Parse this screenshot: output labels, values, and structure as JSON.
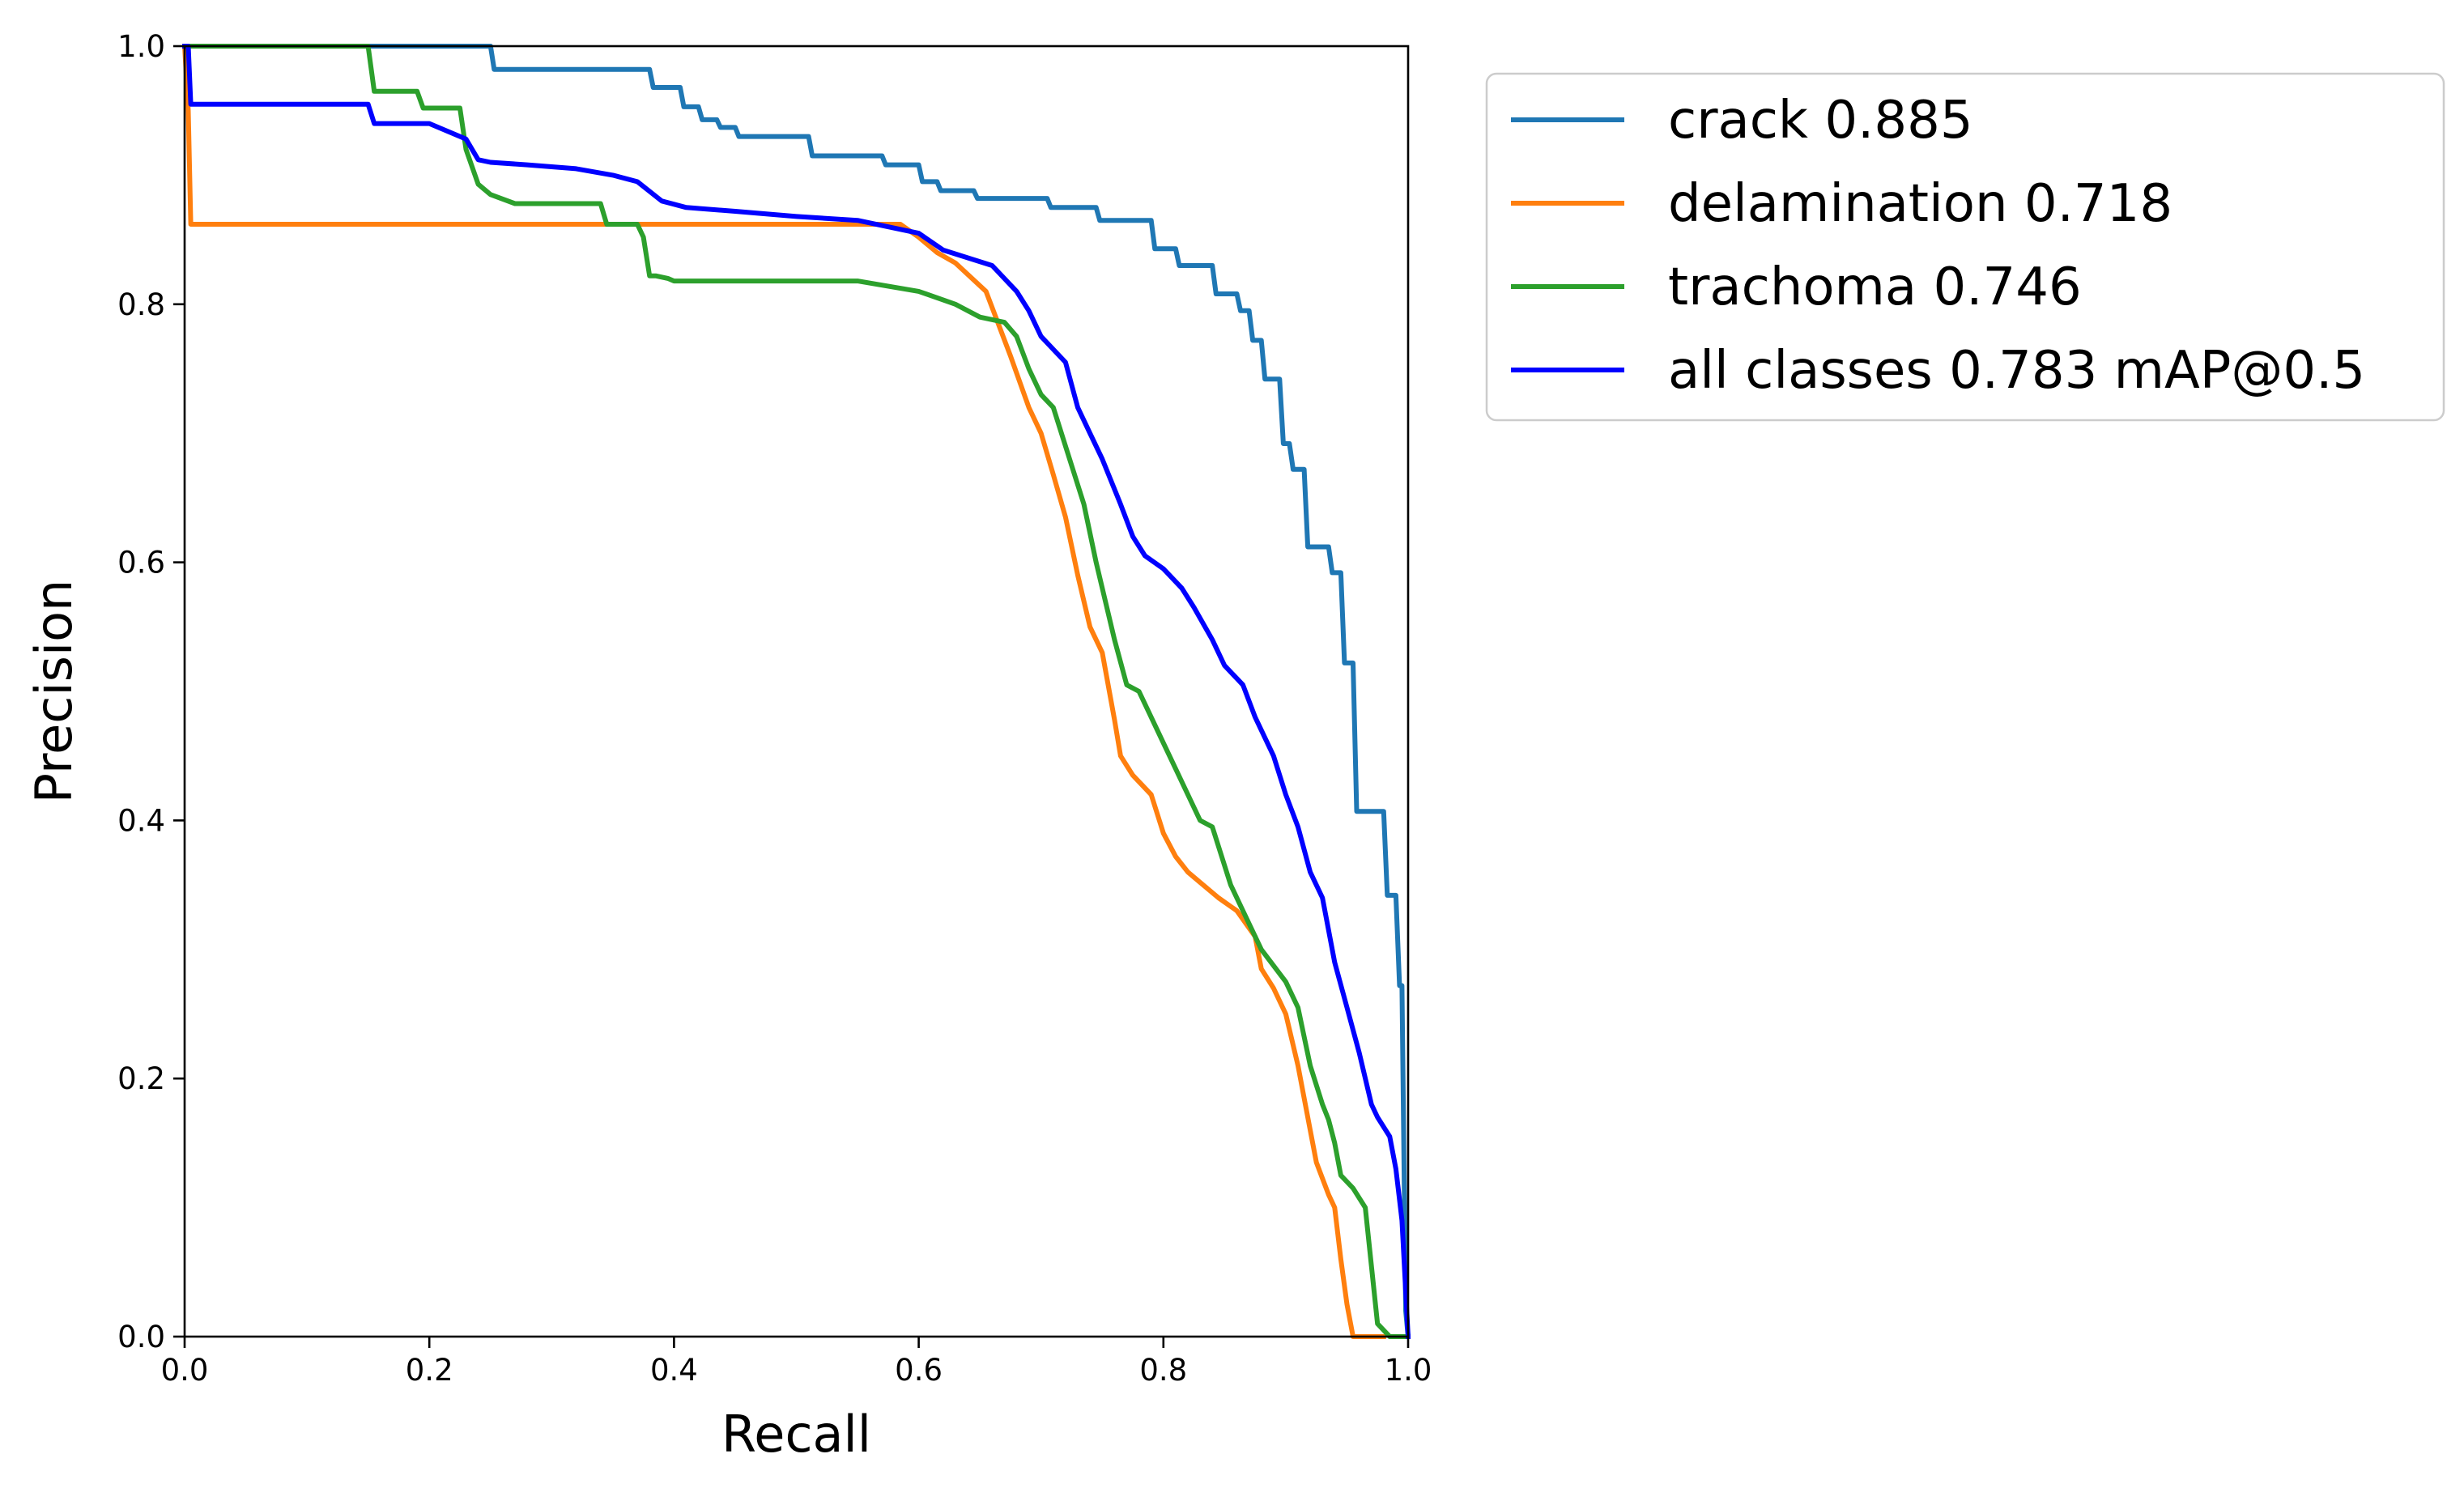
{
  "chart_data": {
    "type": "line",
    "title": "",
    "xlabel": "Recall",
    "ylabel": "Precision",
    "xlim": [
      0.0,
      1.0
    ],
    "ylim": [
      0.0,
      1.0
    ],
    "grid": false,
    "legend_position": "outside-top-right",
    "x_ticks": [
      0.0,
      0.2,
      0.4,
      0.6,
      0.8,
      1.0
    ],
    "y_ticks": [
      0.0,
      0.2,
      0.4,
      0.6,
      0.8,
      1.0
    ],
    "x_tick_labels": [
      "0.0",
      "0.2",
      "0.4",
      "0.6",
      "0.8",
      "1.0"
    ],
    "y_tick_labels": [
      "0.0",
      "0.2",
      "0.4",
      "0.6",
      "0.8",
      "1.0"
    ],
    "series": [
      {
        "name": "crack",
        "label": "crack 0.885",
        "ap": 0.885,
        "color": "#1f77b4",
        "x": [
          0.0,
          0.005,
          0.25,
          0.253,
          0.38,
          0.383,
          0.405,
          0.408,
          0.42,
          0.423,
          0.435,
          0.438,
          0.45,
          0.453,
          0.51,
          0.513,
          0.57,
          0.573,
          0.6,
          0.603,
          0.615,
          0.618,
          0.645,
          0.648,
          0.705,
          0.708,
          0.745,
          0.748,
          0.79,
          0.793,
          0.81,
          0.813,
          0.84,
          0.843,
          0.86,
          0.863,
          0.87,
          0.873,
          0.88,
          0.883,
          0.895,
          0.898,
          0.903,
          0.906,
          0.915,
          0.918,
          0.935,
          0.938,
          0.945,
          0.948,
          0.955,
          0.958,
          0.98,
          0.983,
          0.99,
          0.993,
          0.995,
          0.998,
          1.0
        ],
        "y": [
          1.0,
          1.0,
          1.0,
          0.982,
          0.982,
          0.968,
          0.968,
          0.953,
          0.953,
          0.943,
          0.943,
          0.937,
          0.937,
          0.93,
          0.93,
          0.915,
          0.915,
          0.908,
          0.908,
          0.895,
          0.895,
          0.888,
          0.888,
          0.882,
          0.882,
          0.875,
          0.875,
          0.865,
          0.865,
          0.843,
          0.843,
          0.83,
          0.83,
          0.808,
          0.808,
          0.795,
          0.795,
          0.772,
          0.772,
          0.742,
          0.742,
          0.692,
          0.692,
          0.672,
          0.672,
          0.612,
          0.612,
          0.592,
          0.592,
          0.522,
          0.522,
          0.407,
          0.407,
          0.342,
          0.342,
          0.272,
          0.272,
          0.02,
          0.0
        ]
      },
      {
        "name": "delamination",
        "label": "delamination 0.718",
        "ap": 0.718,
        "color": "#ff7f0e",
        "x": [
          0.0,
          0.003,
          0.005,
          0.1,
          0.2,
          0.3,
          0.4,
          0.5,
          0.55,
          0.585,
          0.6,
          0.615,
          0.63,
          0.655,
          0.675,
          0.69,
          0.7,
          0.71,
          0.72,
          0.73,
          0.74,
          0.75,
          0.76,
          0.765,
          0.775,
          0.79,
          0.8,
          0.81,
          0.82,
          0.83,
          0.845,
          0.86,
          0.875,
          0.88,
          0.89,
          0.9,
          0.91,
          0.92,
          0.925,
          0.935,
          0.94,
          0.945,
          0.95,
          0.955,
          0.962,
          0.97,
          0.98
        ],
        "y": [
          1.0,
          0.95,
          0.862,
          0.862,
          0.862,
          0.862,
          0.862,
          0.862,
          0.862,
          0.862,
          0.852,
          0.84,
          0.832,
          0.81,
          0.76,
          0.72,
          0.7,
          0.668,
          0.635,
          0.59,
          0.55,
          0.53,
          0.478,
          0.45,
          0.435,
          0.42,
          0.39,
          0.372,
          0.36,
          0.352,
          0.34,
          0.33,
          0.31,
          0.285,
          0.27,
          0.25,
          0.21,
          0.16,
          0.135,
          0.11,
          0.1,
          0.06,
          0.025,
          0.0,
          0.0,
          0.0,
          0.0
        ]
      },
      {
        "name": "trachoma",
        "label": "trachoma 0.746",
        "ap": 0.746,
        "color": "#2ca02c",
        "x": [
          0.0,
          0.02,
          0.15,
          0.155,
          0.19,
          0.195,
          0.225,
          0.23,
          0.24,
          0.25,
          0.27,
          0.28,
          0.34,
          0.345,
          0.37,
          0.375,
          0.38,
          0.385,
          0.395,
          0.4,
          0.55,
          0.6,
          0.63,
          0.65,
          0.67,
          0.68,
          0.69,
          0.7,
          0.71,
          0.72,
          0.735,
          0.745,
          0.76,
          0.77,
          0.78,
          0.79,
          0.8,
          0.81,
          0.83,
          0.84,
          0.855,
          0.865,
          0.88,
          0.9,
          0.91,
          0.92,
          0.93,
          0.935,
          0.94,
          0.945,
          0.955,
          0.965,
          0.975,
          0.985,
          0.99,
          1.0
        ],
        "y": [
          1.0,
          1.0,
          1.0,
          0.965,
          0.965,
          0.952,
          0.952,
          0.92,
          0.893,
          0.885,
          0.878,
          0.878,
          0.878,
          0.862,
          0.862,
          0.852,
          0.822,
          0.822,
          0.82,
          0.818,
          0.818,
          0.81,
          0.8,
          0.79,
          0.786,
          0.775,
          0.75,
          0.73,
          0.72,
          0.69,
          0.645,
          0.6,
          0.54,
          0.505,
          0.5,
          0.48,
          0.46,
          0.44,
          0.4,
          0.395,
          0.35,
          0.33,
          0.3,
          0.275,
          0.255,
          0.21,
          0.18,
          0.168,
          0.15,
          0.125,
          0.115,
          0.1,
          0.01,
          0.0,
          0.0,
          0.0
        ]
      },
      {
        "name": "all classes",
        "label": "all classes 0.783 mAP@0.5",
        "map50": 0.783,
        "color": "#0000ff",
        "x": [
          0.0,
          0.003,
          0.005,
          0.15,
          0.155,
          0.2,
          0.23,
          0.24,
          0.25,
          0.28,
          0.32,
          0.35,
          0.37,
          0.39,
          0.41,
          0.45,
          0.5,
          0.55,
          0.6,
          0.62,
          0.66,
          0.68,
          0.69,
          0.7,
          0.72,
          0.73,
          0.74,
          0.75,
          0.765,
          0.775,
          0.785,
          0.8,
          0.815,
          0.825,
          0.84,
          0.85,
          0.865,
          0.875,
          0.89,
          0.9,
          0.91,
          0.92,
          0.93,
          0.94,
          0.95,
          0.96,
          0.97,
          0.975,
          0.985,
          0.99,
          0.995,
          1.0
        ],
        "y": [
          1.0,
          1.0,
          0.955,
          0.955,
          0.94,
          0.94,
          0.928,
          0.912,
          0.91,
          0.908,
          0.905,
          0.9,
          0.895,
          0.88,
          0.875,
          0.872,
          0.868,
          0.865,
          0.855,
          0.842,
          0.83,
          0.81,
          0.795,
          0.775,
          0.755,
          0.72,
          0.7,
          0.68,
          0.645,
          0.62,
          0.605,
          0.595,
          0.58,
          0.565,
          0.54,
          0.52,
          0.505,
          0.48,
          0.45,
          0.42,
          0.395,
          0.36,
          0.34,
          0.29,
          0.255,
          0.22,
          0.18,
          0.17,
          0.155,
          0.13,
          0.09,
          0.0
        ]
      }
    ]
  }
}
